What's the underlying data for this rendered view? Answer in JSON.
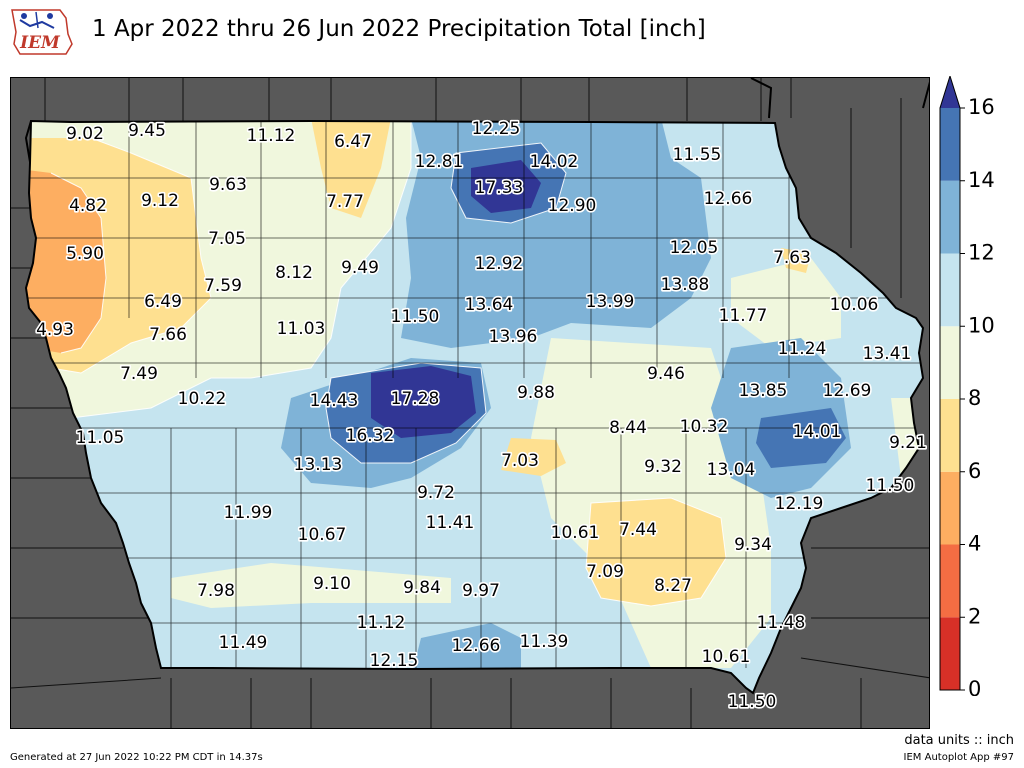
{
  "header": {
    "logo_text": "IEM",
    "title": "1 Apr 2022 thru 26 Jun 2022 Precipitation Total [inch]"
  },
  "map": {
    "region": "Iowa",
    "variable": "Precipitation Total",
    "units": "inch",
    "labels": [
      {
        "text": "9.02"
      },
      {
        "text": "9.45"
      },
      {
        "text": "11.12"
      },
      {
        "text": "6.47"
      },
      {
        "text": "12.25"
      },
      {
        "text": "12.81"
      },
      {
        "text": "14.02"
      },
      {
        "text": "11.55"
      },
      {
        "text": "17.33"
      },
      {
        "text": "9.12"
      },
      {
        "text": "9.63"
      },
      {
        "text": "4.82"
      },
      {
        "text": "7.77"
      },
      {
        "text": "12.90"
      },
      {
        "text": "12.66"
      },
      {
        "text": "7.05"
      },
      {
        "text": "5.90"
      },
      {
        "text": "12.05"
      },
      {
        "text": "7.63"
      },
      {
        "text": "12.92"
      },
      {
        "text": "8.12"
      },
      {
        "text": "9.49"
      },
      {
        "text": "7.59"
      },
      {
        "text": "13.88"
      },
      {
        "text": "6.49"
      },
      {
        "text": "13.64"
      },
      {
        "text": "13.99"
      },
      {
        "text": "10.06"
      },
      {
        "text": "11.50"
      },
      {
        "text": "11.77"
      },
      {
        "text": "4.93"
      },
      {
        "text": "11.03"
      },
      {
        "text": "7.66"
      },
      {
        "text": "13.96"
      },
      {
        "text": "11.24"
      },
      {
        "text": "13.41"
      },
      {
        "text": "9.46"
      },
      {
        "text": "7.49"
      },
      {
        "text": "13.85"
      },
      {
        "text": "12.69"
      },
      {
        "text": "9.88"
      },
      {
        "text": "10.22"
      },
      {
        "text": "14.43"
      },
      {
        "text": "17.28"
      },
      {
        "text": "11.05"
      },
      {
        "text": "16.32"
      },
      {
        "text": "8.44"
      },
      {
        "text": "10.32"
      },
      {
        "text": "14.01"
      },
      {
        "text": "9.21"
      },
      {
        "text": "7.03"
      },
      {
        "text": "13.13"
      },
      {
        "text": "9.32"
      },
      {
        "text": "13.04"
      },
      {
        "text": "11.50"
      },
      {
        "text": "9.72"
      },
      {
        "text": "12.19"
      },
      {
        "text": "11.99"
      },
      {
        "text": "11.41"
      },
      {
        "text": "10.61"
      },
      {
        "text": "7.44"
      },
      {
        "text": "10.67"
      },
      {
        "text": "9.34"
      },
      {
        "text": "7.09"
      },
      {
        "text": "9.10"
      },
      {
        "text": "9.84"
      },
      {
        "text": "9.97"
      },
      {
        "text": "8.27"
      },
      {
        "text": "7.98"
      },
      {
        "text": "11.12"
      },
      {
        "text": "11.48"
      },
      {
        "text": "11.49"
      },
      {
        "text": "11.39"
      },
      {
        "text": "12.66"
      },
      {
        "text": "12.15"
      },
      {
        "text": "10.61"
      },
      {
        "text": "11.50"
      }
    ]
  },
  "colorbar": {
    "ticks": [
      "0",
      "2",
      "4",
      "6",
      "8",
      "10",
      "12",
      "14",
      "16"
    ],
    "colors": [
      "#d73027",
      "#f46d43",
      "#fdae61",
      "#fee090",
      "#f0f7dd",
      "#c5e4ef",
      "#7fb3d7",
      "#4575b4",
      "#313695"
    ]
  },
  "footer": {
    "generated": "Generated at 27 Jun 2022 10:22 PM CDT in 14.37s",
    "units_note": "data units :: inch",
    "app": "IEM Autoplot App #97"
  }
}
